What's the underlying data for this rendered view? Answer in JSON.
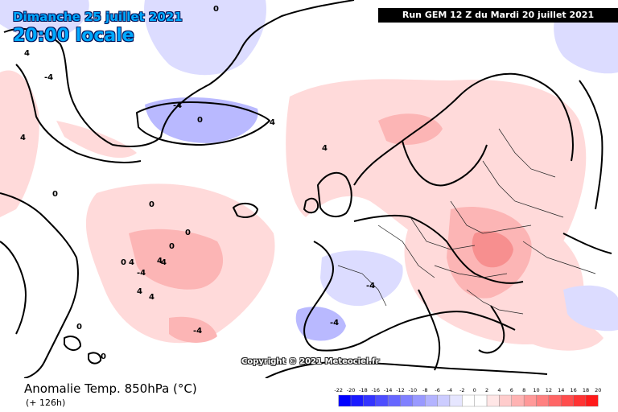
{
  "header": {
    "date": "Dimanche 25 juillet 2021",
    "time": "20:00 locale",
    "run": "Run GEM 12 Z du Mardi 20 juillet 2021"
  },
  "map": {
    "copyright": "Copyright © 2021 Meteociel.fr",
    "background_color": "#ffffff",
    "coast_color": "#000000",
    "warm_anomaly_color": "#ffdada",
    "warm_strong_color": "#fcb5b5",
    "warm_peak_color": "#f78f8f",
    "cool_anomaly_color": "#dcdcff",
    "cool_strong_color": "#b9b9ff",
    "contour_labels": [
      "0",
      "4",
      "-4",
      "4",
      "0",
      "-4",
      "0",
      "4",
      "0",
      "-4",
      "0",
      "4",
      "0",
      "4",
      "4",
      "4",
      "0",
      "4",
      "-4",
      "0",
      "-4",
      "0",
      "4",
      "-4"
    ]
  },
  "footer": {
    "variable": "Anomalie Temp. 850hPa (°C)",
    "lead_time": "(+ 126h)"
  },
  "legend": {
    "ticks": [
      "-22",
      "-20",
      "-18",
      "-16",
      "-14",
      "-12",
      "-10",
      "-8",
      "-6",
      "-4",
      "-2",
      "0",
      "2",
      "4",
      "6",
      "8",
      "10",
      "12",
      "14",
      "16",
      "18",
      "20"
    ],
    "colors": [
      "#0000ff",
      "#1a1aff",
      "#3333ff",
      "#4d4dff",
      "#6666ff",
      "#8080ff",
      "#9999ff",
      "#b3b3ff",
      "#ccccff",
      "#e6e6ff",
      "#ffffff",
      "#ffffff",
      "#ffe6e6",
      "#ffcccc",
      "#ffb3b3",
      "#ff9999",
      "#ff8080",
      "#ff6666",
      "#ff4d4d",
      "#ff3333",
      "#ff1a1a"
    ]
  }
}
